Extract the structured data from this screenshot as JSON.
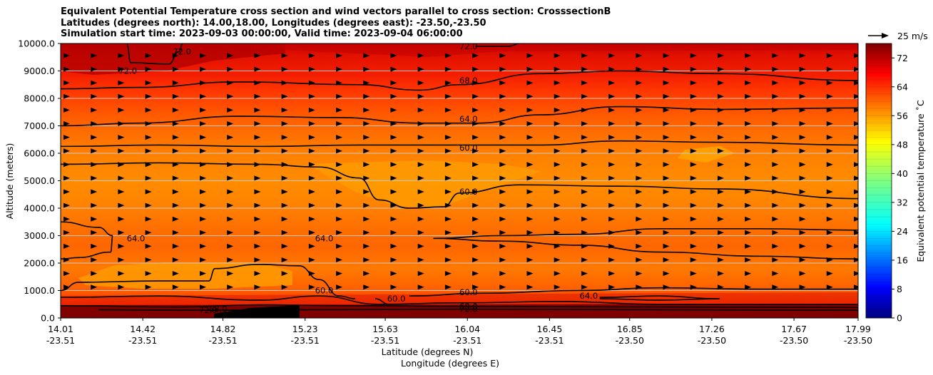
{
  "title_lines": [
    "Equivalent Potential Temperature cross section and wind vectors parallel to cross section: CrosssectionB",
    "Latitudes (degrees north): 14.00,18.00, Longitudes (degrees east): -23.50,-23.50",
    "Simulation start time: 2023-09-03 00:00:00, Valid time: 2023-09-04 06:00:00"
  ],
  "chart_data": {
    "type": "heatmap",
    "ylabel": "Altitude (meters)",
    "xlabel_line1": "Latitude (degrees N)",
    "xlabel_line2": "Longitude (degrees E)",
    "ylim": [
      0,
      10000
    ],
    "y_ticks": [
      "0.0",
      "1000.0",
      "2000.0",
      "3000.0",
      "4000.0",
      "5000.0",
      "6000.0",
      "7000.0",
      "8000.0",
      "9000.0",
      "10000.0"
    ],
    "x_ticks": [
      {
        "lat": "14.01",
        "lon": "-23.51"
      },
      {
        "lat": "14.42",
        "lon": "-23.51"
      },
      {
        "lat": "14.82",
        "lon": "-23.51"
      },
      {
        "lat": "15.23",
        "lon": "-23.51"
      },
      {
        "lat": "15.63",
        "lon": "-23.51"
      },
      {
        "lat": "16.04",
        "lon": "-23.51"
      },
      {
        "lat": "16.45",
        "lon": "-23.51"
      },
      {
        "lat": "16.85",
        "lon": "-23.50"
      },
      {
        "lat": "17.26",
        "lon": "-23.50"
      },
      {
        "lat": "17.67",
        "lon": "-23.50"
      },
      {
        "lat": "17.99",
        "lon": "-23.50"
      }
    ],
    "xlim": [
      14.01,
      17.99
    ],
    "grid": "horizontal",
    "colorbar": {
      "label": "Equivalent potential temperature ˚C",
      "range": [
        0,
        76
      ],
      "ticks": [
        "0",
        "8",
        "16",
        "24",
        "32",
        "40",
        "48",
        "56",
        "64",
        "72"
      ],
      "colormap": "jet"
    },
    "wind_key": {
      "label": "25 m/s",
      "value": 25
    },
    "contour_levels": [
      "60.0",
      "64.0",
      "68.0",
      "72.0"
    ],
    "contour_labels": [
      {
        "text": "72.0",
        "lat": 16.0,
        "alt": 9900
      },
      {
        "text": "72.0",
        "lat": 14.3,
        "alt": 9000
      },
      {
        "text": "72.0",
        "lat": 14.57,
        "alt": 9700
      },
      {
        "text": "68.0",
        "lat": 16.0,
        "alt": 8650
      },
      {
        "text": "64.0",
        "lat": 16.0,
        "alt": 7250
      },
      {
        "text": "60.0",
        "lat": 16.0,
        "alt": 6200
      },
      {
        "text": "60.0",
        "lat": 16.0,
        "alt": 4600
      },
      {
        "text": "64.0",
        "lat": 15.28,
        "alt": 2900
      },
      {
        "text": "64.0",
        "lat": 14.34,
        "alt": 2900
      },
      {
        "text": "60.0",
        "lat": 15.28,
        "alt": 1000
      },
      {
        "text": "60.0",
        "lat": 15.64,
        "alt": 700
      },
      {
        "text": "60.0",
        "lat": 16.0,
        "alt": 930
      },
      {
        "text": "64.0",
        "lat": 16.6,
        "alt": 800
      },
      {
        "text": "68.0",
        "lat": 14.75,
        "alt": 320
      },
      {
        "text": "72.0",
        "lat": 14.7,
        "alt": 280
      },
      {
        "text": "68.0",
        "lat": 16.0,
        "alt": 420
      },
      {
        "text": "72.0",
        "lat": 16.0,
        "alt": 330
      }
    ],
    "series": [
      {
        "level": 72,
        "points": [
          [
            14.34,
            10000
          ],
          [
            14.36,
            9300
          ],
          [
            14.55,
            9250
          ],
          [
            14.6,
            9700
          ],
          [
            14.62,
            10000
          ]
        ]
      },
      {
        "level": 72,
        "points": [
          [
            16.08,
            9900
          ],
          [
            16.25,
            9900
          ],
          [
            16.3,
            10000
          ]
        ]
      },
      {
        "level": 68,
        "points": [
          [
            14.01,
            8350
          ],
          [
            14.4,
            8400
          ],
          [
            14.9,
            8600
          ],
          [
            15.5,
            8500
          ],
          [
            15.8,
            8300
          ],
          [
            16.0,
            8500
          ],
          [
            16.4,
            8900
          ],
          [
            16.8,
            9000
          ],
          [
            17.3,
            8900
          ],
          [
            17.99,
            8650
          ]
        ]
      },
      {
        "level": 64,
        "points": [
          [
            14.01,
            7000
          ],
          [
            14.4,
            7100
          ],
          [
            14.9,
            7350
          ],
          [
            15.4,
            7300
          ],
          [
            15.8,
            7100
          ],
          [
            16.1,
            7100
          ],
          [
            16.4,
            7400
          ],
          [
            16.8,
            7700
          ],
          [
            17.3,
            7600
          ],
          [
            17.99,
            7650
          ]
        ]
      },
      {
        "level": 60,
        "points": [
          [
            14.01,
            6250
          ],
          [
            14.5,
            6300
          ],
          [
            15.0,
            6250
          ],
          [
            15.5,
            6300
          ],
          [
            16.0,
            6300
          ],
          [
            16.4,
            6300
          ],
          [
            16.8,
            6450
          ],
          [
            17.3,
            6400
          ],
          [
            17.99,
            6300
          ]
        ]
      },
      {
        "level": 60,
        "points": [
          [
            14.01,
            5600
          ],
          [
            14.5,
            5650
          ],
          [
            15.0,
            5600
          ],
          [
            15.3,
            5500
          ],
          [
            15.5,
            5100
          ],
          [
            15.6,
            4300
          ],
          [
            15.75,
            4000
          ],
          [
            15.92,
            4050
          ],
          [
            16.0,
            4550
          ],
          [
            16.3,
            4850
          ],
          [
            16.8,
            4800
          ],
          [
            17.3,
            4700
          ],
          [
            17.99,
            4350
          ]
        ]
      },
      {
        "level": 64,
        "points": [
          [
            14.01,
            3500
          ],
          [
            14.2,
            3300
          ],
          [
            14.27,
            3000
          ],
          [
            14.26,
            2400
          ],
          [
            14.1,
            2200
          ],
          [
            14.01,
            2150
          ]
        ]
      },
      {
        "level": 64,
        "points": [
          [
            15.87,
            2900
          ],
          [
            16.2,
            3000
          ],
          [
            16.6,
            3050
          ],
          [
            17.0,
            3250
          ],
          [
            17.5,
            3250
          ],
          [
            17.99,
            3200
          ]
        ]
      },
      {
        "level": 64,
        "points": [
          [
            15.87,
            2900
          ],
          [
            16.2,
            2800
          ],
          [
            16.6,
            2650
          ],
          [
            17.0,
            2400
          ],
          [
            17.5,
            2250
          ],
          [
            17.99,
            2150
          ]
        ]
      },
      {
        "level": 60,
        "points": [
          [
            14.01,
            1000
          ],
          [
            14.1,
            1300
          ],
          [
            14.5,
            1350
          ],
          [
            14.75,
            1350
          ],
          [
            14.78,
            1800
          ],
          [
            15.0,
            1950
          ],
          [
            15.2,
            1900
          ],
          [
            15.3,
            1400
          ],
          [
            15.4,
            800
          ],
          [
            15.48,
            700
          ]
        ]
      },
      {
        "level": 60,
        "points": [
          [
            15.58,
            700
          ],
          [
            15.65,
            500
          ]
        ]
      },
      {
        "level": 60,
        "points": [
          [
            15.75,
            800
          ],
          [
            16.1,
            900
          ],
          [
            16.6,
            1000
          ],
          [
            17.0,
            1100
          ],
          [
            17.5,
            1050
          ],
          [
            17.99,
            1050
          ]
        ]
      },
      {
        "level": 64,
        "points": [
          [
            16.7,
            750
          ],
          [
            17.0,
            800
          ],
          [
            17.3,
            700
          ],
          [
            17.0,
            650
          ],
          [
            16.7,
            700
          ]
        ]
      },
      {
        "level": 64,
        "points": [
          [
            14.01,
            750
          ],
          [
            14.5,
            800
          ],
          [
            15.0,
            650
          ],
          [
            15.3,
            800
          ],
          [
            15.6,
            500
          ],
          [
            16.0,
            550
          ],
          [
            16.5,
            600
          ],
          [
            17.0,
            500
          ],
          [
            17.99,
            500
          ]
        ]
      },
      {
        "level": 68,
        "points": [
          [
            14.01,
            450
          ],
          [
            14.6,
            400
          ],
          [
            15.0,
            480
          ],
          [
            15.4,
            450
          ],
          [
            16.0,
            420
          ],
          [
            17.0,
            400
          ],
          [
            17.99,
            380
          ]
        ]
      },
      {
        "level": 72,
        "points": [
          [
            14.2,
            300
          ],
          [
            14.7,
            280
          ],
          [
            15.2,
            300
          ],
          [
            16.0,
            320
          ],
          [
            17.0,
            300
          ],
          [
            17.99,
            280
          ]
        ]
      }
    ]
  }
}
